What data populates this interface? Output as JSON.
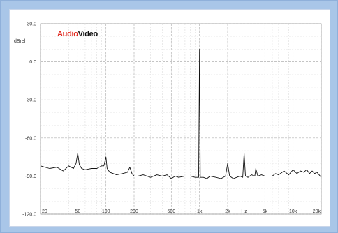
{
  "logo": {
    "part1": "Audio",
    "part2": "Video"
  },
  "chart_data": {
    "type": "line",
    "title": "",
    "xlabel": "",
    "ylabel": "dBrel",
    "x_scale": "log",
    "xlim": [
      20,
      20000
    ],
    "ylim": [
      -120,
      30
    ],
    "grid": true,
    "y_ticks": [
      {
        "value": 30,
        "label": "30.0"
      },
      {
        "value": 0,
        "label": "0.0"
      },
      {
        "value": -30,
        "label": "-30.0"
      },
      {
        "value": -60,
        "label": "-60.0"
      },
      {
        "value": -90,
        "label": "-90.0"
      },
      {
        "value": -120,
        "label": "-120.0"
      }
    ],
    "x_ticks": [
      {
        "value": 20,
        "label": "20"
      },
      {
        "value": 50,
        "label": "50"
      },
      {
        "value": 100,
        "label": "100"
      },
      {
        "value": 200,
        "label": "200"
      },
      {
        "value": 500,
        "label": "500"
      },
      {
        "value": 1000,
        "label": "1k"
      },
      {
        "value": 2000,
        "label": "2k"
      },
      {
        "value": 3000,
        "label": "Hz"
      },
      {
        "value": 5000,
        "label": "5k"
      },
      {
        "value": 10000,
        "label": "10k"
      },
      {
        "value": 20000,
        "label": "20k"
      }
    ],
    "series": [
      {
        "color": "#111111",
        "x": [
          20,
          25,
          30,
          35,
          40,
          45,
          48,
          50,
          52,
          55,
          60,
          70,
          80,
          90,
          95,
          100,
          103,
          110,
          130,
          150,
          170,
          180,
          190,
          200,
          220,
          250,
          300,
          350,
          400,
          450,
          500,
          550,
          600,
          700,
          800,
          900,
          980,
          1000,
          1020,
          1100,
          1200,
          1300,
          1500,
          1700,
          1900,
          2000,
          2100,
          2300,
          2500,
          2700,
          2900,
          3000,
          3100,
          3300,
          3600,
          3900,
          4000,
          4200,
          4600,
          5000,
          5500,
          6000,
          6500,
          7000,
          8000,
          9000,
          10000,
          11000,
          12000,
          13000,
          14000,
          15000,
          16000,
          17000,
          18000,
          19000,
          20000
        ],
        "y": [
          -82,
          -84,
          -83,
          -86,
          -82,
          -84,
          -80,
          -72,
          -81,
          -84,
          -85,
          -84,
          -84,
          -82,
          -82,
          -75,
          -84,
          -87,
          -89,
          -88,
          -87,
          -83,
          -88,
          -90,
          -90,
          -89,
          -91,
          -89,
          -90,
          -89,
          -92,
          -90,
          -91,
          -90,
          -90,
          -91,
          -91,
          10,
          -91,
          -91,
          -92,
          -90,
          -91,
          -92,
          -90,
          -80,
          -90,
          -92,
          -91,
          -90,
          -91,
          -72,
          -90,
          -91,
          -89,
          -90,
          -84,
          -90,
          -89,
          -90,
          -90,
          -90,
          -88,
          -89,
          -86,
          -89,
          -85,
          -88,
          -86,
          -87,
          -85,
          -88,
          -86,
          -88,
          -87,
          -89,
          -91
        ]
      }
    ]
  }
}
